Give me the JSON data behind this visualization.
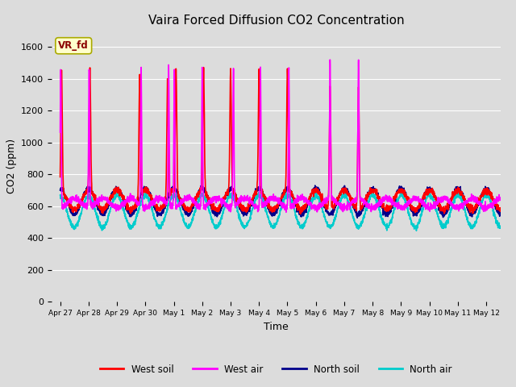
{
  "title": "Vaira Forced Diffusion CO2 Concentration",
  "xlabel": "Time",
  "ylabel": "CO2 (ppm)",
  "ylim": [
    0,
    1700
  ],
  "background_color": "#dcdcdc",
  "plot_bg_color": "#dcdcdc",
  "legend_labels": [
    "West soil",
    "West air",
    "North soil",
    "North air"
  ],
  "legend_colors": [
    "#ff0000",
    "#ff00ff",
    "#00008b",
    "#00cccc"
  ],
  "annotation_text": "VR_fd",
  "annotation_color": "#8b0000",
  "annotation_bg": "#ffffcc",
  "x_tick_labels": [
    "Apr 27",
    "Apr 28",
    "Apr 29",
    "Apr 30",
    "May 1",
    "May 2",
    "May 3",
    "May 4",
    "May 5",
    "May 6",
    "May 7",
    "May 8",
    "May 9",
    "May 10",
    "May 11",
    "May 12"
  ],
  "x_tick_positions": [
    0,
    1,
    2,
    3,
    4,
    5,
    6,
    7,
    8,
    9,
    10,
    11,
    12,
    13,
    14,
    15
  ],
  "ytick_values": [
    0,
    200,
    400,
    600,
    800,
    1000,
    1200,
    1400,
    1600
  ],
  "line_width": 1.2
}
